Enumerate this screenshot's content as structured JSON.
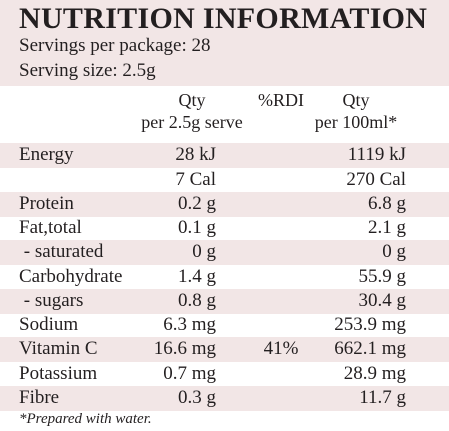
{
  "panel": {
    "title": "NUTRITION INFORMATION",
    "servings_per_package": "Servings per package: 28",
    "serving_size": "Serving size: 2.5g",
    "background_accent": "#f2e6e6",
    "text_color": "#231f20"
  },
  "columns": {
    "qty_serve_line1": "Qty",
    "qty_serve_line2": "per 2.5g serve",
    "rdi": "%RDI",
    "qty_100_line1": "Qty",
    "qty_100_line2": "per 100ml*"
  },
  "rows": [
    {
      "label": "Energy",
      "per_serve": "28 kJ",
      "rdi": "",
      "per_100": "1119 kJ"
    },
    {
      "label": "",
      "per_serve": "7 Cal",
      "rdi": "",
      "per_100": "270 Cal"
    },
    {
      "label": "Protein",
      "per_serve": "0.2 g",
      "rdi": "",
      "per_100": "6.8 g"
    },
    {
      "label": "Fat,total",
      "per_serve": "0.1 g",
      "rdi": "",
      "per_100": "2.1 g"
    },
    {
      "label": " - saturated",
      "per_serve": "0 g",
      "rdi": "",
      "per_100": "0 g"
    },
    {
      "label": "Carbohydrate",
      "per_serve": "1.4 g",
      "rdi": "",
      "per_100": "55.9 g"
    },
    {
      "label": " - sugars",
      "per_serve": "0.8 g",
      "rdi": "",
      "per_100": "30.4 g"
    },
    {
      "label": "Sodium",
      "per_serve": "6.3 mg",
      "rdi": "",
      "per_100": "253.9 mg"
    },
    {
      "label": "Vitamin C",
      "per_serve": "16.6 mg",
      "rdi": "41%",
      "per_100": "662.1 mg"
    },
    {
      "label": "Potassium",
      "per_serve": "0.7 mg",
      "rdi": "",
      "per_100": "28.9 mg"
    },
    {
      "label": "Fibre",
      "per_serve": "0.3 g",
      "rdi": "",
      "per_100": "11.7 g"
    }
  ],
  "footnote": "*Prepared with water."
}
